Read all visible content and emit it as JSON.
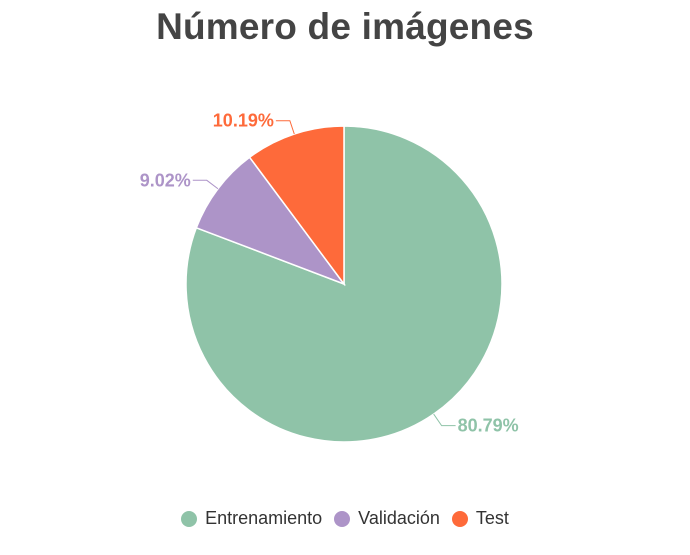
{
  "chart_data": {
    "type": "pie",
    "title": "Número de imágenes",
    "slices": [
      {
        "name": "Entrenamiento",
        "value": 80.79,
        "label": "80.79%",
        "color": "#8fc3a8"
      },
      {
        "name": "Validación",
        "value": 9.02,
        "label": "9.02%",
        "color": "#ad94c8"
      },
      {
        "name": "Test",
        "value": 10.19,
        "label": "10.19%",
        "color": "#fe6a3a"
      }
    ],
    "start_angle": "12 o'clock",
    "direction": "clockwise",
    "legend_position": "bottom"
  },
  "legend": {
    "items": [
      {
        "label": "Entrenamiento",
        "color": "#8fc3a8"
      },
      {
        "label": "Validación",
        "color": "#ad94c8"
      },
      {
        "label": "Test",
        "color": "#fe6a3a"
      }
    ]
  }
}
